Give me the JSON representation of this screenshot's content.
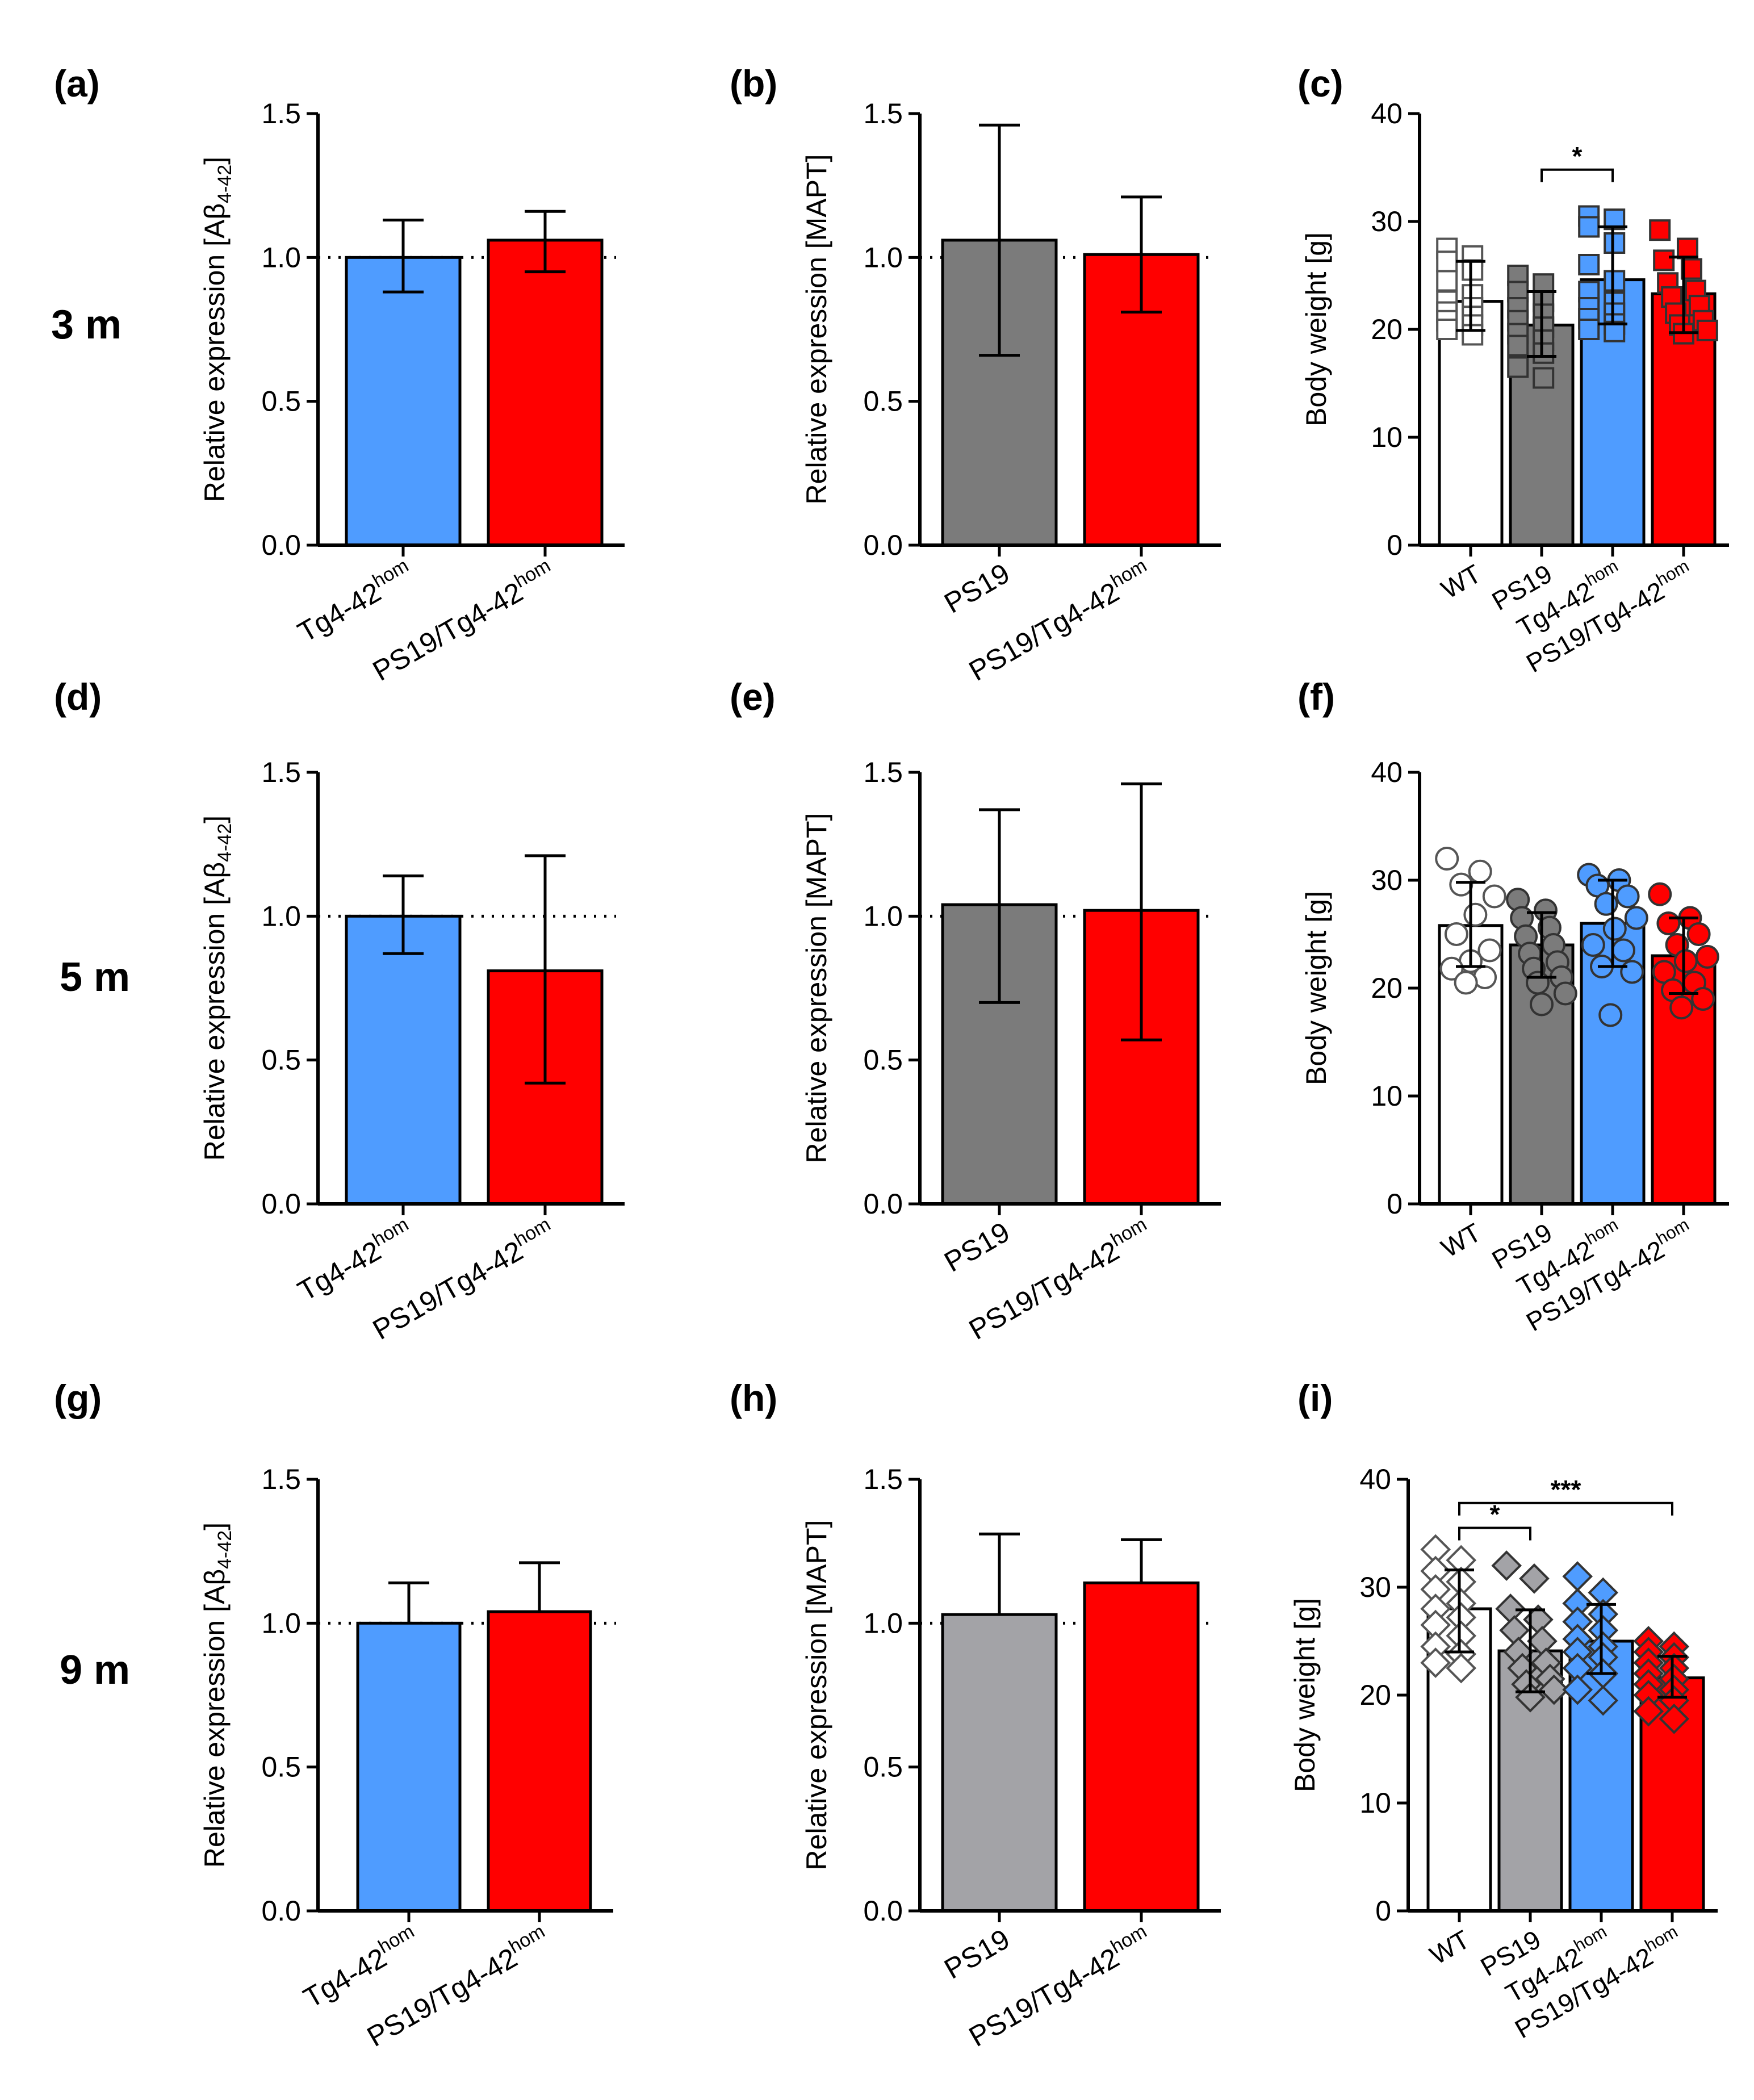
{
  "row_labels": [
    "3 m",
    "5 m",
    "9 m"
  ],
  "colors": {
    "blue": "#4f9cff",
    "red": "#ff0000",
    "dark_gray": "#7b7b7b",
    "light_gray": "#a3a3a7",
    "white": "#ffffff",
    "axis": "#000000"
  },
  "chart_data": [
    {
      "panel": "(a)",
      "type": "bar",
      "ylabel": "Relative expression [Aβ4-42]",
      "ylabel_main": "Relative expression [Aβ",
      "ylabel_sub": "4-42",
      "ylabel_end": "]",
      "ylim": [
        0,
        1.5
      ],
      "yticks": [
        "0.0",
        "0.5",
        "1.0",
        "1.5"
      ],
      "reference_line": 1.0,
      "categories": [
        {
          "base": "Tg4-42",
          "sup": "hom",
          "value": 1.0,
          "err_low": 0.88,
          "err_high": 1.13,
          "color": "#4f9cff"
        },
        {
          "base": "PS19/Tg4-42",
          "sup": "hom",
          "value": 1.06,
          "err_low": 0.95,
          "err_high": 1.16,
          "color": "#ff0000"
        }
      ]
    },
    {
      "panel": "(b)",
      "type": "bar",
      "ylabel": "Relative expression [MAPT]",
      "ylabel_main": "Relative expression [MAPT]",
      "ylabel_sub": "",
      "ylabel_end": "",
      "ylim": [
        0,
        1.5
      ],
      "yticks": [
        "0.0",
        "0.5",
        "1.0",
        "1.5"
      ],
      "reference_line": 1.0,
      "categories": [
        {
          "base": "PS19",
          "sup": "",
          "value": 1.06,
          "err_low": 0.66,
          "err_high": 1.46,
          "color": "#7b7b7b"
        },
        {
          "base": "PS19/Tg4-42",
          "sup": "hom",
          "value": 1.01,
          "err_low": 0.81,
          "err_high": 1.21,
          "color": "#ff0000"
        }
      ]
    },
    {
      "panel": "(c)",
      "type": "bar-scatter",
      "ylabel": "Body weight [g]",
      "ylabel_main": "Body weight [g]",
      "ylabel_sub": "",
      "ylabel_end": "",
      "ylim": [
        0,
        40
      ],
      "yticks": [
        "0",
        "10",
        "20",
        "30",
        "40"
      ],
      "marker": "square",
      "categories": [
        {
          "base": "WT",
          "sup": "",
          "value": 22.6,
          "err_low": 19.9,
          "err_high": 26.3,
          "color": "#ffffff",
          "points": [
            27.5,
            26.8,
            26.3,
            25.5,
            24.5,
            23.2,
            22.6,
            22.0,
            21.6,
            21.2,
            20.8,
            20.4,
            20.0,
            19.5
          ]
        },
        {
          "base": "PS19",
          "sup": "",
          "value": 20.4,
          "err_low": 17.5,
          "err_high": 23.5,
          "color": "#7b7b7b",
          "points": [
            25.0,
            24.2,
            23.5,
            22.6,
            22.0,
            21.4,
            20.8,
            20.2,
            19.6,
            19.0,
            18.5,
            17.8,
            16.5,
            15.5
          ]
        },
        {
          "base": "Tg4-42",
          "sup": "hom",
          "value": 24.6,
          "err_low": 20.5,
          "err_high": 29.5,
          "color": "#4f9cff",
          "points": [
            30.5,
            30.2,
            29.5,
            28.0,
            26.0,
            24.5,
            23.5,
            22.5,
            22.0,
            21.5,
            21.0,
            20.5,
            20.0,
            19.8
          ]
        },
        {
          "base": "PS19/Tg4-42",
          "sup": "hom",
          "value": 23.3,
          "err_low": 19.7,
          "err_high": 26.7,
          "color": "#ff0000",
          "points": [
            29.2,
            27.5,
            26.4,
            25.6,
            24.3,
            23.6,
            23.0,
            22.2,
            21.5,
            20.8,
            20.4,
            19.9,
            19.6
          ]
        }
      ],
      "significance": [
        {
          "from": 1,
          "to": 2,
          "label": "*",
          "y": 34.8
        }
      ]
    },
    {
      "panel": "(d)",
      "type": "bar",
      "ylabel": "Relative expression [Aβ4-42]",
      "ylabel_main": "Relative expression [Aβ",
      "ylabel_sub": "4-42",
      "ylabel_end": "]",
      "ylim": [
        0,
        1.5
      ],
      "yticks": [
        "0.0",
        "0.5",
        "1.0",
        "1.5"
      ],
      "reference_line": 1.0,
      "categories": [
        {
          "base": "Tg4-42",
          "sup": "hom",
          "value": 1.0,
          "err_low": 0.87,
          "err_high": 1.14,
          "color": "#4f9cff"
        },
        {
          "base": "PS19/Tg4-42",
          "sup": "hom",
          "value": 0.81,
          "err_low": 0.42,
          "err_high": 1.21,
          "color": "#ff0000"
        }
      ]
    },
    {
      "panel": "(e)",
      "type": "bar",
      "ylabel": "Relative expression [MAPT]",
      "ylabel_main": "Relative expression [MAPT]",
      "ylabel_sub": "",
      "ylabel_end": "",
      "ylim": [
        0,
        1.5
      ],
      "yticks": [
        "0.0",
        "0.5",
        "1.0",
        "1.5"
      ],
      "reference_line": 1.0,
      "categories": [
        {
          "base": "PS19",
          "sup": "",
          "value": 1.04,
          "err_low": 0.7,
          "err_high": 1.37,
          "color": "#7b7b7b"
        },
        {
          "base": "PS19/Tg4-42",
          "sup": "hom",
          "value": 1.02,
          "err_low": 0.57,
          "err_high": 1.46,
          "color": "#ff0000"
        }
      ]
    },
    {
      "panel": "(f)",
      "type": "bar-scatter",
      "ylabel": "Body weight [g]",
      "ylabel_main": "Body weight [g]",
      "ylabel_sub": "",
      "ylabel_end": "",
      "ylim": [
        0,
        40
      ],
      "yticks": [
        "0",
        "10",
        "20",
        "30",
        "40"
      ],
      "marker": "circle",
      "categories": [
        {
          "base": "WT",
          "sup": "",
          "value": 25.8,
          "err_low": 22.0,
          "err_high": 29.8,
          "color": "#ffffff",
          "points": [
            32.0,
            30.8,
            29.6,
            28.5,
            26.8,
            25.0,
            23.5,
            22.5,
            21.8,
            21.0,
            20.5
          ]
        },
        {
          "base": "PS19",
          "sup": "",
          "value": 24.0,
          "err_low": 21.0,
          "err_high": 27.0,
          "color": "#7b7b7b",
          "points": [
            28.2,
            27.2,
            26.5,
            25.6,
            24.8,
            24.0,
            23.2,
            22.4,
            21.8,
            21.0,
            20.5,
            19.5,
            18.5
          ]
        },
        {
          "base": "Tg4-42",
          "sup": "hom",
          "value": 26.0,
          "err_low": 22.0,
          "err_high": 30.0,
          "color": "#4f9cff",
          "points": [
            30.5,
            30.0,
            29.5,
            28.5,
            27.8,
            26.5,
            25.5,
            24.0,
            23.5,
            22.0,
            21.5,
            17.5
          ]
        },
        {
          "base": "PS19/Tg4-42",
          "sup": "hom",
          "value": 23.0,
          "err_low": 19.5,
          "err_high": 26.5,
          "color": "#ff0000",
          "points": [
            28.7,
            26.5,
            26.0,
            25.0,
            24.0,
            22.9,
            22.5,
            21.5,
            20.5,
            19.8,
            19.0,
            18.2
          ]
        }
      ]
    },
    {
      "panel": "(g)",
      "type": "bar",
      "ylabel": "Relative expression [Aβ4-42]",
      "ylabel_main": "Relative expression [Aβ",
      "ylabel_sub": "4-42",
      "ylabel_end": "]",
      "ylim": [
        0,
        1.5
      ],
      "yticks": [
        "0.0",
        "0.5",
        "1.0",
        "1.5"
      ],
      "reference_line": 1.0,
      "categories": [
        {
          "base": "Tg4-42",
          "sup": "hom",
          "value": 1.0,
          "err_low": 1.0,
          "err_high": 1.14,
          "color": "#4f9cff"
        },
        {
          "base": "PS19/Tg4-42",
          "sup": "hom",
          "value": 1.04,
          "err_low": 1.04,
          "err_high": 1.21,
          "color": "#ff0000"
        }
      ]
    },
    {
      "panel": "(h)",
      "type": "bar",
      "ylabel": "Relative expression [MAPT]",
      "ylabel_main": "Relative expression [MAPT]",
      "ylabel_sub": "",
      "ylabel_end": "",
      "ylim": [
        0,
        1.5
      ],
      "yticks": [
        "0.0",
        "0.5",
        "1.0",
        "1.5"
      ],
      "reference_line": 1.0,
      "categories": [
        {
          "base": "PS19",
          "sup": "",
          "value": 1.03,
          "err_low": 1.03,
          "err_high": 1.31,
          "color": "#a3a3a7"
        },
        {
          "base": "PS19/Tg4-42",
          "sup": "hom",
          "value": 1.14,
          "err_low": 1.14,
          "err_high": 1.29,
          "color": "#ff0000"
        }
      ]
    },
    {
      "panel": "(i)",
      "type": "bar-scatter",
      "ylabel": "Body weight [g]",
      "ylabel_main": "Body weight [g]",
      "ylabel_sub": "",
      "ylabel_end": "",
      "ylim": [
        0,
        40
      ],
      "yticks": [
        "0",
        "10",
        "20",
        "30",
        "40"
      ],
      "marker": "diamond",
      "categories": [
        {
          "base": "WT",
          "sup": "",
          "value": 28.0,
          "err_low": 24.0,
          "err_high": 31.6,
          "color": "#ffffff",
          "points": [
            33.5,
            32.5,
            31.5,
            30.5,
            29.8,
            28.5,
            28.0,
            27.2,
            26.5,
            25.5,
            24.5,
            23.8,
            23.0,
            22.5
          ]
        },
        {
          "base": "PS19",
          "sup": "",
          "value": 24.1,
          "err_low": 20.3,
          "err_high": 27.9,
          "color": "#a3a3a7",
          "points": [
            32.0,
            30.8,
            28.0,
            27.0,
            26.0,
            25.0,
            24.0,
            23.0,
            22.5,
            21.5,
            21.0,
            20.5,
            19.8
          ]
        },
        {
          "base": "Tg4-42",
          "sup": "hom",
          "value": 25.0,
          "err_low": 22.0,
          "err_high": 28.4,
          "color": "#4f9cff",
          "points": [
            31.0,
            29.5,
            28.5,
            27.5,
            26.8,
            26.0,
            25.2,
            24.5,
            24.0,
            23.5,
            22.5,
            22.0,
            20.5,
            19.5
          ]
        },
        {
          "base": "PS19/Tg4-42",
          "sup": "hom",
          "value": 21.6,
          "err_low": 19.8,
          "err_high": 23.6,
          "color": "#ff0000",
          "points": [
            25.0,
            24.5,
            24.0,
            23.5,
            23.0,
            22.5,
            22.0,
            21.5,
            21.0,
            20.5,
            20.0,
            19.5,
            18.5,
            17.8
          ]
        }
      ],
      "significance": [
        {
          "from": 0,
          "to": 1,
          "label": "*",
          "y": 35.5
        },
        {
          "from": 0,
          "to": 3,
          "label": "***",
          "y": 37.8
        }
      ]
    }
  ]
}
